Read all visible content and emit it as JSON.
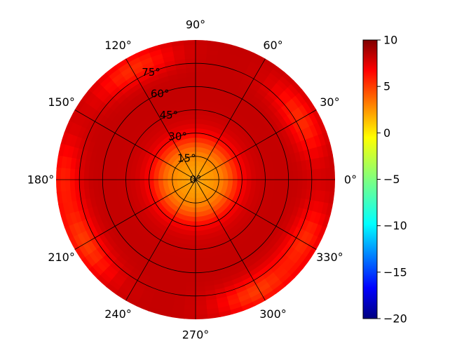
{
  "chart_data": {
    "type": "heatmap",
    "projection": "polar",
    "title": "",
    "colormap": "jet",
    "angle_ticks": [
      "0°",
      "30°",
      "60°",
      "90°",
      "120°",
      "150°",
      "180°",
      "210°",
      "240°",
      "270°",
      "300°",
      "330°"
    ],
    "radial_ticks": [
      "0°",
      "15°",
      "30°",
      "45°",
      "60°",
      "75°"
    ],
    "radial_range": [
      0,
      90
    ],
    "colorbar": {
      "range": [
        -20,
        10
      ],
      "ticks": [
        "10",
        "5",
        "0",
        "−5",
        "−10",
        "−15",
        "−20"
      ]
    },
    "field": {
      "description": "Values rise from about 0–2 near the centre (zenith) to about 7–9 for most of the disc, with slightly lower values (~4–6) on a few patches near the outer rim.",
      "center_value": 1.5,
      "plateau_value": 8,
      "rim_low_patches": [
        {
          "azimuth_deg": 30,
          "zenith_deg": 78,
          "value": 5
        },
        {
          "azimuth_deg": 120,
          "zenith_deg": 82,
          "value": 5
        },
        {
          "azimuth_deg": 180,
          "zenith_deg": 85,
          "value": 5.5
        },
        {
          "azimuth_deg": 210,
          "zenith_deg": 82,
          "value": 4.5
        },
        {
          "azimuth_deg": 300,
          "zenith_deg": 82,
          "value": 4.5
        },
        {
          "azimuth_deg": 330,
          "zenith_deg": 80,
          "value": 5
        }
      ]
    },
    "grid": true
  }
}
